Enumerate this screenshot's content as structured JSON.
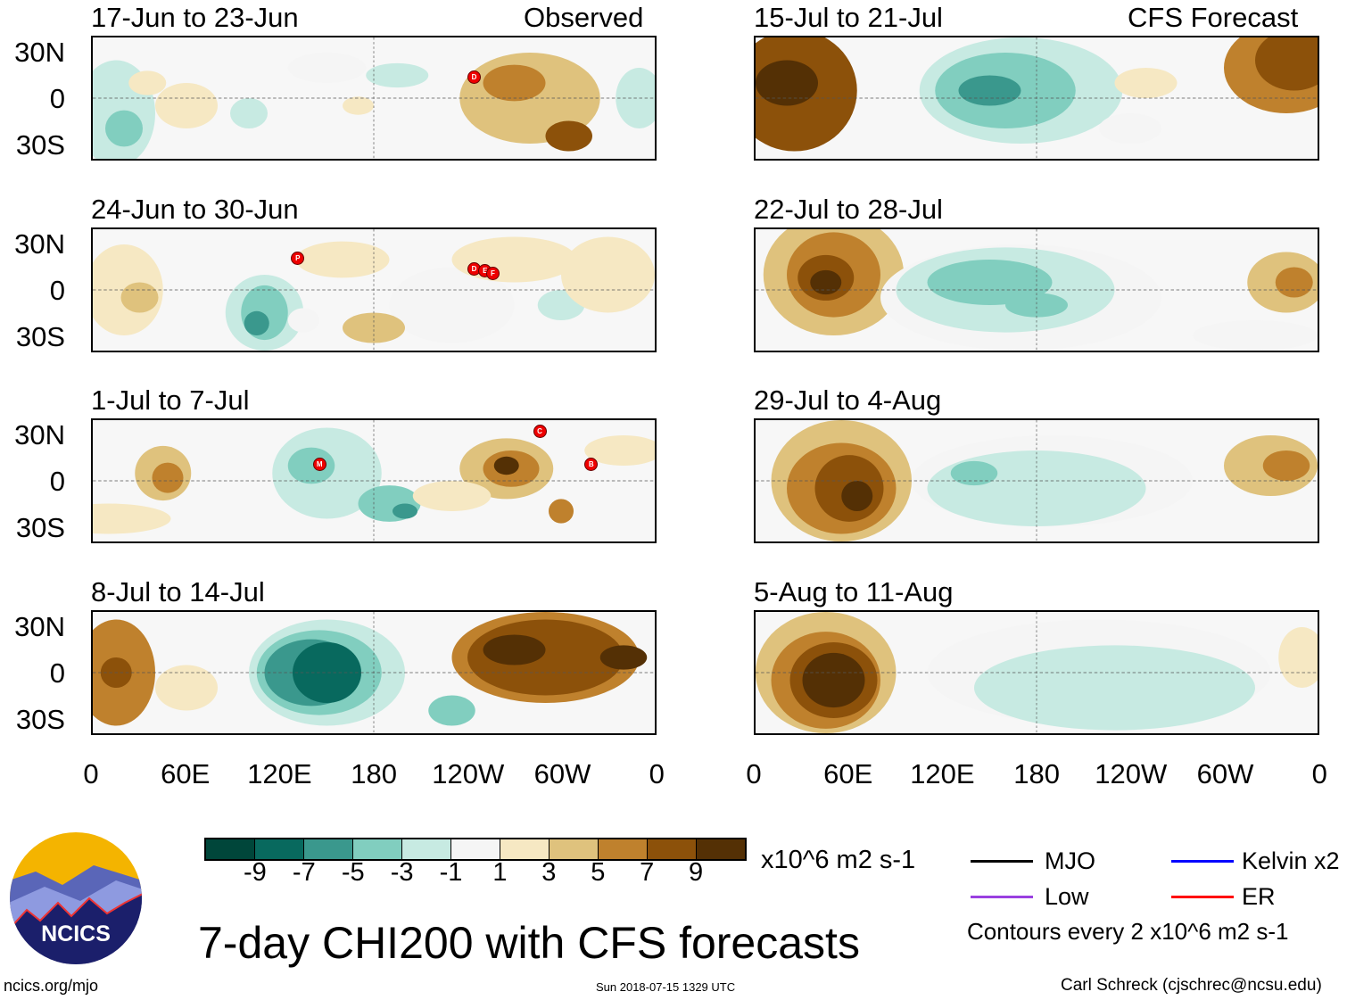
{
  "left_header": "Observed",
  "right_header": "CFS Forecast",
  "panels": [
    {
      "title": "17-Jun to 23-Jun",
      "storms": [
        {
          "label": "D",
          "lon": 244,
          "lat": 14
        }
      ]
    },
    {
      "title": "24-Jun to 30-Jun",
      "storms": [
        {
          "label": "P",
          "lon": 131,
          "lat": 21
        },
        {
          "label": "D",
          "lon": 244,
          "lat": 14
        },
        {
          "label": "E",
          "lon": 251,
          "lat": 13
        },
        {
          "label": "F",
          "lon": 256,
          "lat": 11
        }
      ]
    },
    {
      "title": "1-Jul to 7-Jul",
      "storms": [
        {
          "label": "C",
          "lon": 286,
          "lat": 33
        },
        {
          "label": "M",
          "lon": 145,
          "lat": 11
        },
        {
          "label": "B",
          "lon": 319,
          "lat": 11
        }
      ]
    },
    {
      "title": "8-Jul to 14-Jul",
      "storms": []
    },
    {
      "title": "15-Jul to 21-Jul",
      "storms": []
    },
    {
      "title": "22-Jul to 28-Jul",
      "storms": []
    },
    {
      "title": "29-Jul to 4-Aug",
      "storms": []
    },
    {
      "title": "5-Aug to 11-Aug",
      "storms": []
    }
  ],
  "lat_ticks": [
    "30N",
    "0",
    "30S"
  ],
  "lon_ticks": [
    "0",
    "60E",
    "120E",
    "180",
    "120W",
    "60W",
    "0"
  ],
  "colorbar": {
    "colors": [
      "#00463a",
      "#08695e",
      "#3a988d",
      "#81cebf",
      "#c7eae2",
      "#f5f5f5",
      "#f6e8c3",
      "#dfc27d",
      "#bf812d",
      "#8c510a",
      "#543005"
    ],
    "labels": [
      "-9",
      "-7",
      "-5",
      "-3",
      "-1",
      "1",
      "3",
      "5",
      "7",
      "9"
    ],
    "units": "x10^6 m2 s-1"
  },
  "legend": {
    "items": [
      {
        "label": "MJO",
        "color": "#000000"
      },
      {
        "label": "Kelvin x2",
        "color": "#0000ff"
      },
      {
        "label": "Low",
        "color": "#9a40e0"
      },
      {
        "label": "ER",
        "color": "#ff0000"
      }
    ],
    "contours": "Contours every 2 x10^6 m2 s-1"
  },
  "title": "7-day CHI200 with CFS forecasts",
  "logo_text": "NCICS",
  "url": "ncics.org/mjo",
  "timestamp": "Sun 2018-07-15 1329 UTC",
  "author": "Carl Schreck (cjschrec@ncsu.edu)"
}
